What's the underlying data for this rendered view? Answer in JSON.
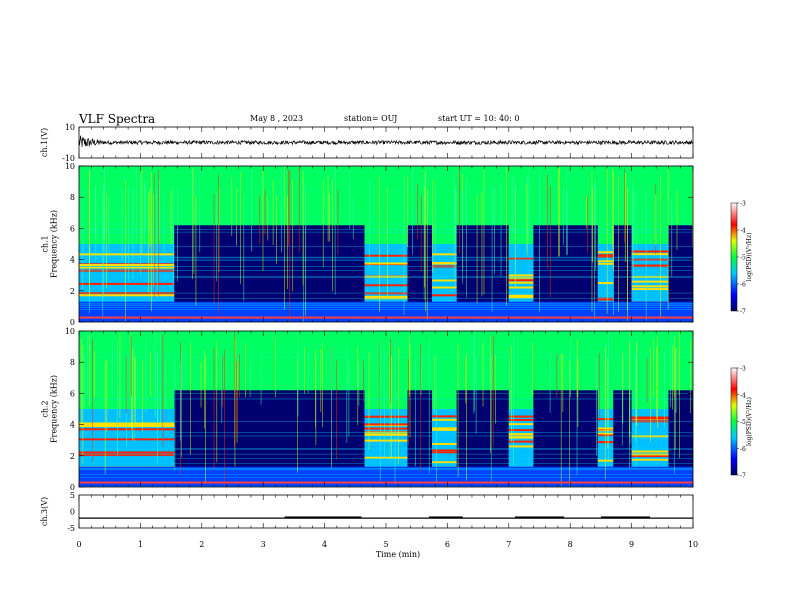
{
  "header": {
    "title": "VLF Spectra",
    "date": "May 8 , 2023",
    "station": "station= OUJ",
    "start": "start UT = 10: 40: 0"
  },
  "chart_data": [
    {
      "type": "line",
      "panel": "ch1-waveform",
      "ylabel": "ch.1(V)",
      "yticks": [
        "10",
        "-10"
      ],
      "ylim": [
        -10,
        10
      ],
      "xlim": [
        0,
        10
      ],
      "description_values": "continuous noise waveform around 0 V"
    },
    {
      "type": "heatmap",
      "panel": "ch1-spectrogram",
      "ylabel": "ch.1\nFrequency (kHz)",
      "yticks": [
        "0",
        "2",
        "4",
        "6",
        "8",
        "10"
      ],
      "ylim": [
        0,
        10
      ],
      "xlim": [
        0,
        10
      ],
      "colorbar_label": "log(PSD)(V²/Hz)",
      "colorbar_ticks": [
        "-3",
        "-4",
        "-5",
        "-6",
        "-7"
      ],
      "colorbar_range": [
        -7,
        -3
      ],
      "bursts_min": [
        [
          0,
          1.55
        ],
        [
          4.65,
          5.35
        ],
        [
          5.75,
          6.15
        ],
        [
          7.0,
          7.4
        ],
        [
          8.45,
          8.7
        ],
        [
          9.0,
          9.6
        ]
      ]
    },
    {
      "type": "heatmap",
      "panel": "ch2-spectrogram",
      "ylabel": "ch.2\nFrequency (kHz)",
      "yticks": [
        "0",
        "2",
        "4",
        "6",
        "8",
        "10"
      ],
      "ylim": [
        0,
        10
      ],
      "xlim": [
        0,
        10
      ],
      "colorbar_label": "log(PSD)(V²/Hz)",
      "colorbar_ticks": [
        "-3",
        "-4",
        "-5",
        "-6",
        "-7"
      ],
      "colorbar_range": [
        -7,
        -3
      ],
      "bursts_min": [
        [
          0,
          1.55
        ],
        [
          4.65,
          5.35
        ],
        [
          5.75,
          6.15
        ],
        [
          7.0,
          7.4
        ],
        [
          8.45,
          8.7
        ],
        [
          9.0,
          9.6
        ]
      ]
    },
    {
      "type": "line",
      "panel": "ch3-waveform",
      "ylabel": "ch.3(V)",
      "yticks": [
        "5",
        "0",
        "-5"
      ],
      "ylim": [
        -5,
        5
      ],
      "xlim": [
        0,
        10
      ],
      "xlabel": "Time (min)",
      "xticks": [
        "0",
        "1",
        "2",
        "3",
        "4",
        "5",
        "6",
        "7",
        "8",
        "9",
        "10"
      ],
      "baseline": -2,
      "pulses_min": [
        [
          3.35,
          4.6
        ],
        [
          5.7,
          6.25
        ],
        [
          7.1,
          7.9
        ],
        [
          8.5,
          9.3
        ]
      ],
      "pulse_level": -1.5
    }
  ]
}
